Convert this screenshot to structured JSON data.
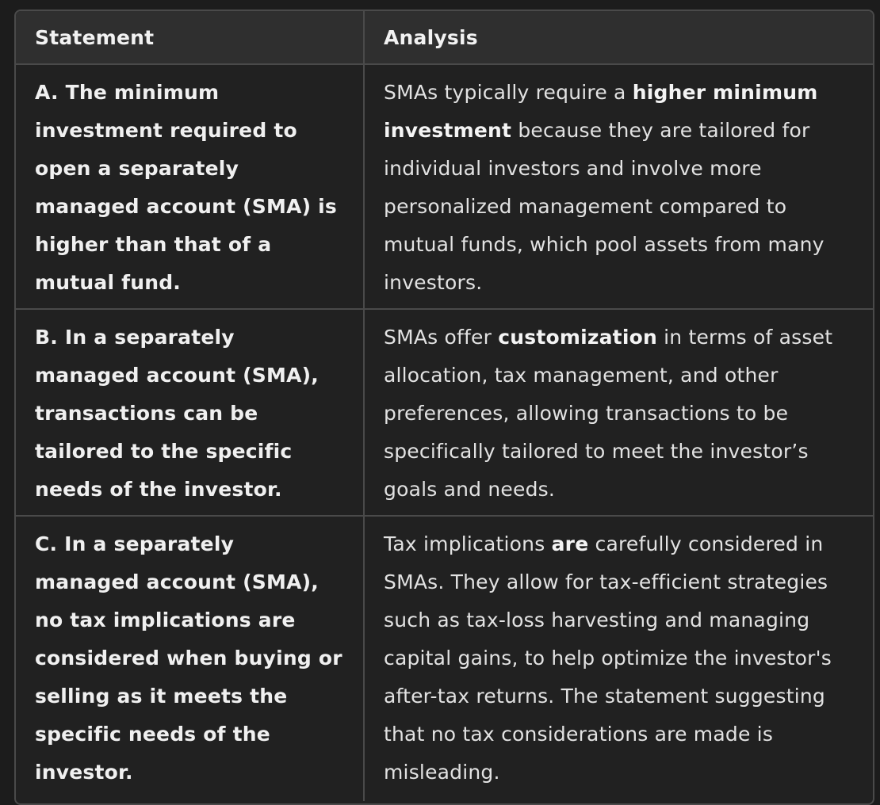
{
  "table": {
    "headers": {
      "statement": "Statement",
      "analysis": "Analysis"
    },
    "rows": [
      {
        "statement": "A. The minimum investment required to open a separately managed account (SMA) is higher than that of a mutual fund.",
        "analysis": {
          "part1": "SMAs typically require a ",
          "bold1": "higher minimum investment",
          "part2": " because they are tailored for individual investors and involve more personalized management compared to mutual funds, which pool assets from many investors."
        }
      },
      {
        "statement": "B. In a separately managed account (SMA), transactions can be tailored to the specific needs of the investor.",
        "analysis": {
          "part1": "SMAs offer ",
          "bold1": "customization",
          "part2": " in terms of asset allocation, tax management, and other preferences, allowing transactions to be specifically tailored to meet the investor’s goals and needs."
        }
      },
      {
        "statement": "C. In a separately managed account (SMA), no tax implications are considered when buying or selling as it meets the specific needs of the investor.",
        "analysis": {
          "part1": "Tax implications ",
          "bold1": "are",
          "part2": " carefully considered in SMAs. They allow for tax-efficient strategies such as tax-loss harvesting and managing capital gains, to help optimize the investor's after-tax returns. The statement suggesting that no tax considerations are made is misleading."
        }
      }
    ]
  }
}
